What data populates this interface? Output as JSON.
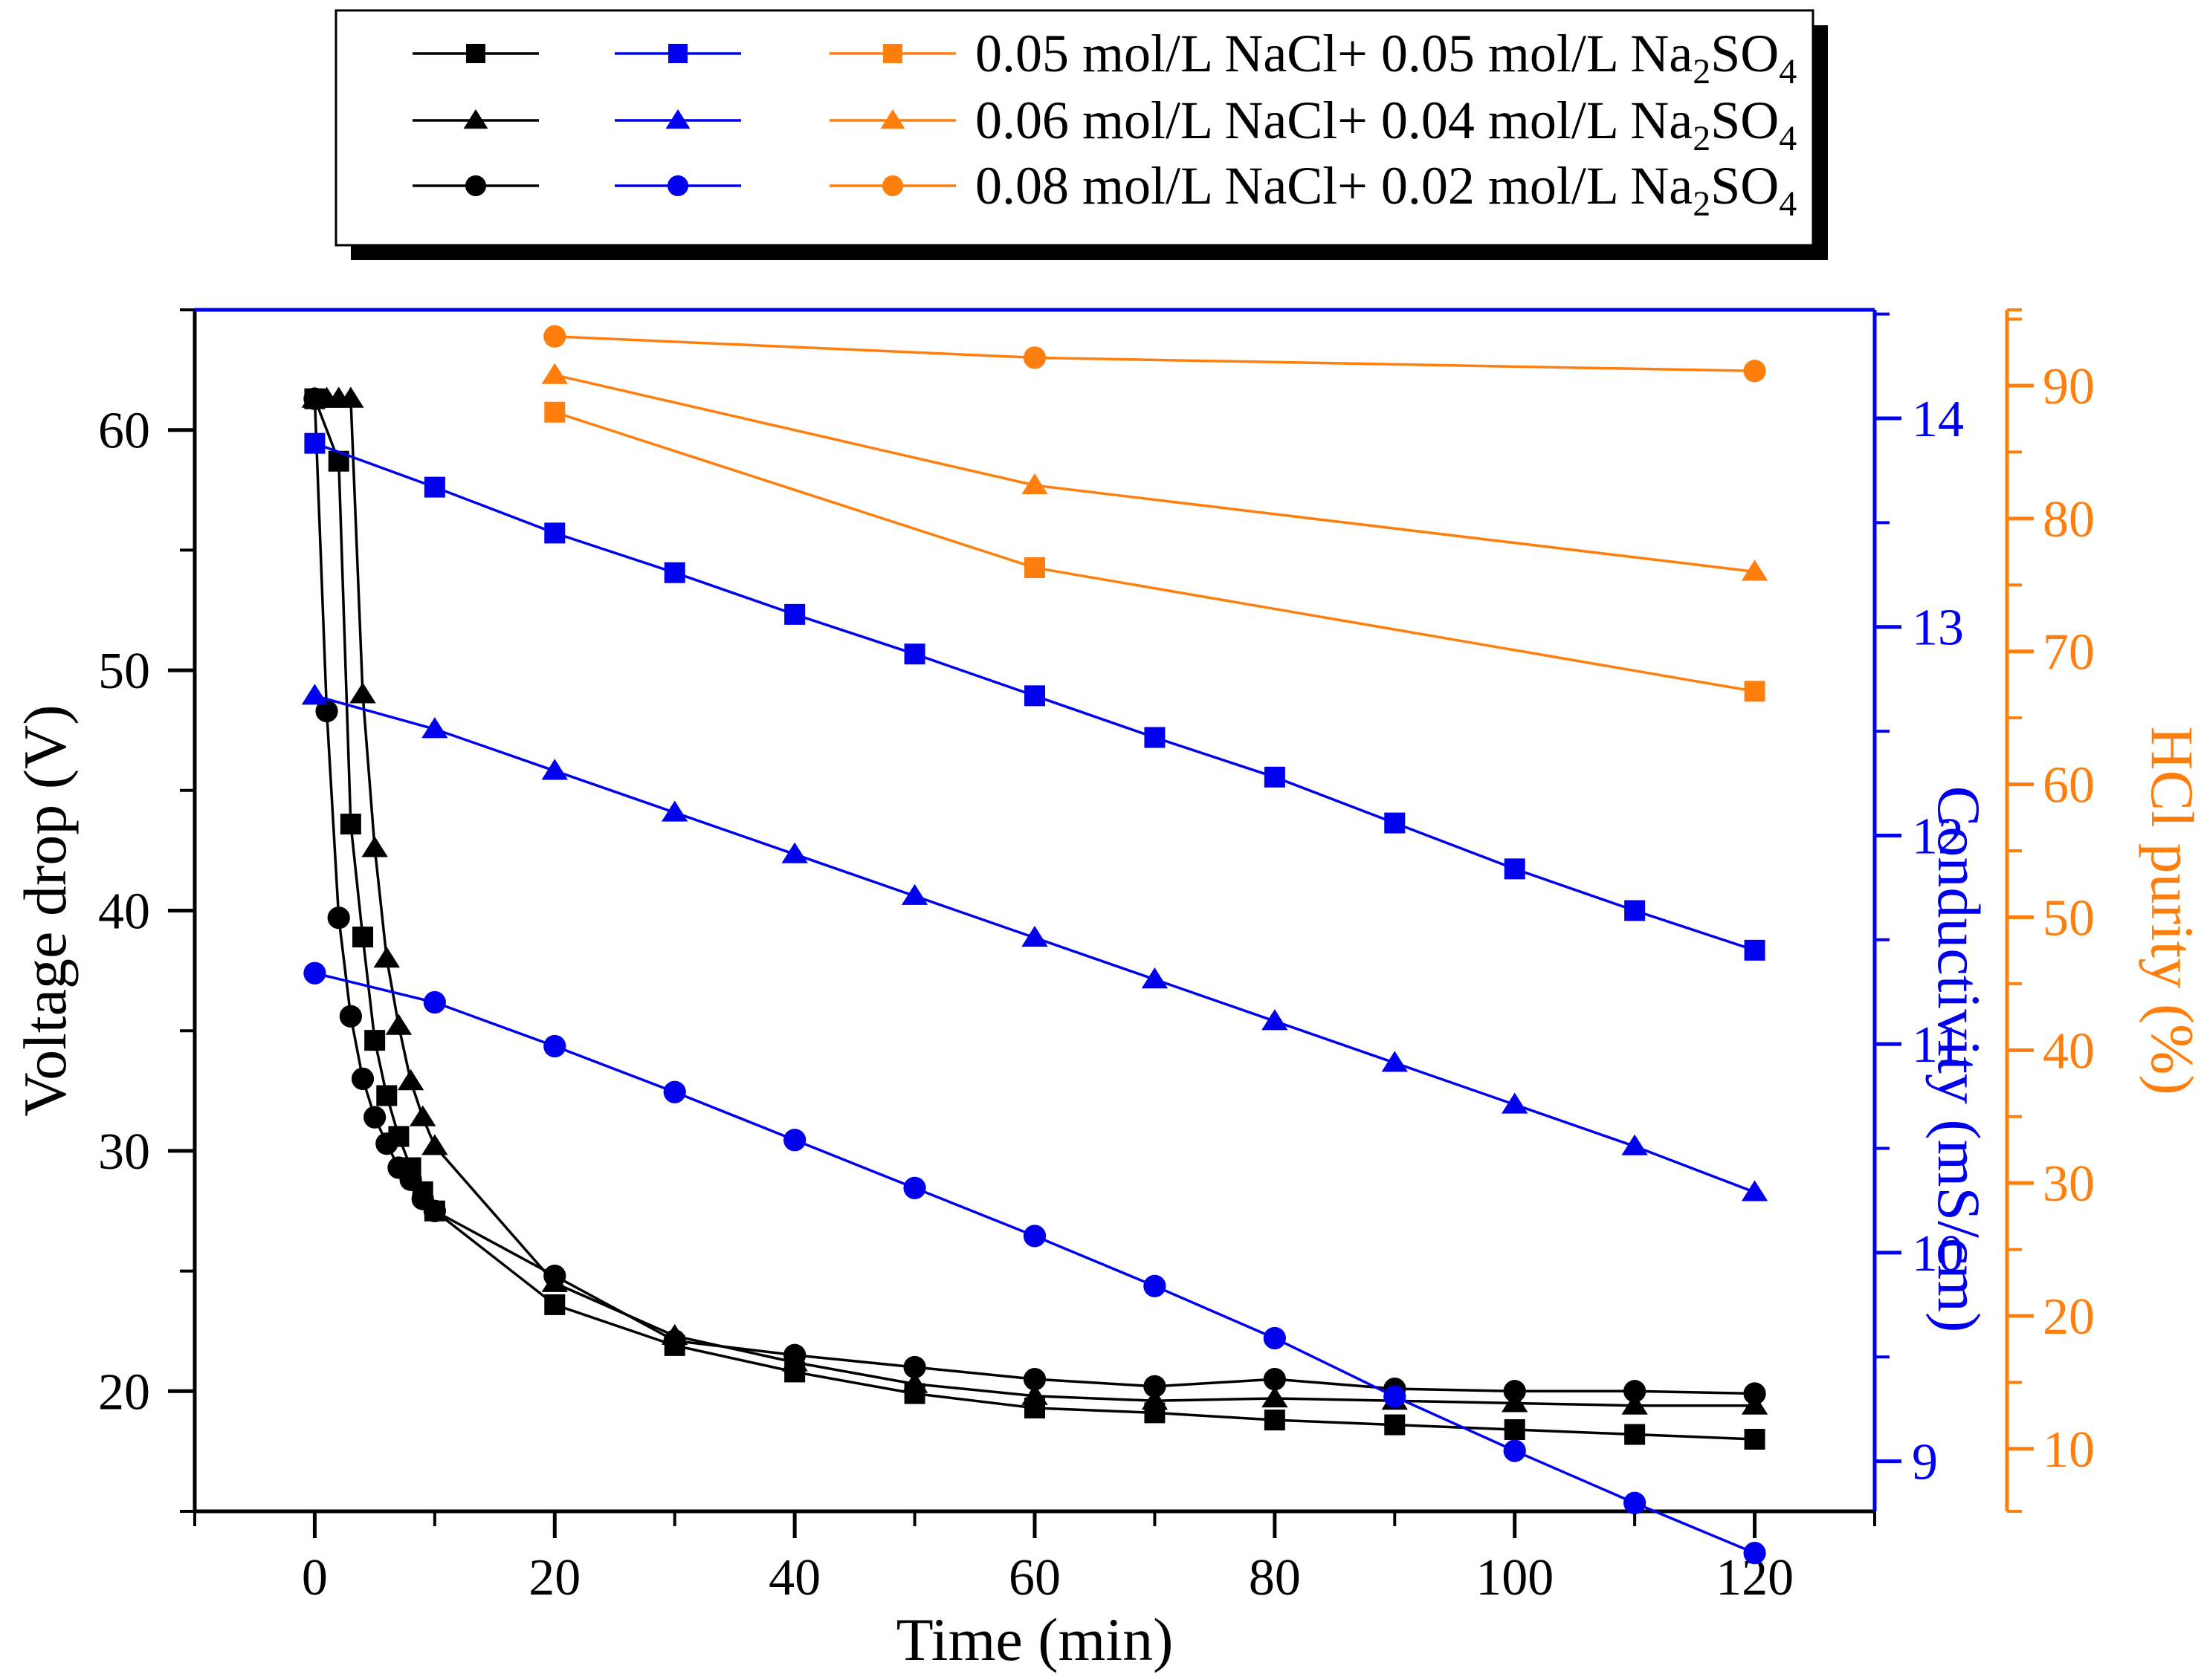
{
  "chart_data": {
    "type": "line",
    "x_axis": {
      "label": "Time (min)",
      "range": [
        -10,
        130
      ],
      "ticks": [
        0,
        20,
        40,
        60,
        80,
        100,
        120
      ],
      "tick_labels": [
        "0",
        "20",
        "40",
        "60",
        "80",
        "100",
        "120"
      ],
      "color": "#000000"
    },
    "y_axes": {
      "voltage": {
        "label": "Voltage drop (V)",
        "side": "left",
        "range": [
          15,
          65
        ],
        "ticks": [
          20,
          30,
          40,
          50,
          60
        ],
        "tick_labels": [
          "20",
          "30",
          "40",
          "50",
          "60"
        ],
        "color": "#000000"
      },
      "conductivity": {
        "label": "Conductivity (mS/cm)",
        "side": "right",
        "range": [
          8.76,
          14.52
        ],
        "ticks": [
          9,
          10,
          11,
          12,
          13,
          14
        ],
        "tick_labels": [
          "9",
          "10",
          "11",
          "12",
          "13",
          "14"
        ],
        "color": "#0000ee"
      },
      "purity": {
        "label": "HCl purity (%)",
        "side": "right-offset",
        "range": [
          5.3,
          95.7
        ],
        "ticks": [
          10,
          20,
          30,
          40,
          50,
          60,
          70,
          80,
          90
        ],
        "tick_labels": [
          "10",
          "20",
          "30",
          "40",
          "50",
          "60",
          "70",
          "80",
          "90"
        ],
        "color": "#ff7f0e"
      }
    },
    "series": [
      {
        "name": "Voltage drop - 0.05 mol/L NaCl+ 0.05 mol/L Na2SO4",
        "axis": "voltage",
        "marker": "square",
        "color": "#000000",
        "x": [
          0,
          2,
          3,
          4,
          5,
          6,
          7,
          8,
          9,
          10,
          20,
          30,
          40,
          50,
          60,
          70,
          80,
          90,
          100,
          110,
          120
        ],
        "y": [
          61.3,
          58.7,
          43.6,
          38.9,
          34.6,
          32.3,
          30.6,
          29.3,
          28.3,
          27.5,
          23.6,
          21.9,
          20.8,
          19.9,
          19.3,
          19.1,
          18.8,
          18.6,
          18.4,
          18.2,
          18.0
        ]
      },
      {
        "name": "Voltage drop - 0.06 mol/L NaCl+ 0.04 mol/L Na2SO4",
        "axis": "voltage",
        "marker": "triangle",
        "color": "#000000",
        "x": [
          0,
          1,
          2,
          3,
          4,
          5,
          6,
          7,
          8,
          9,
          10,
          20,
          30,
          40,
          50,
          60,
          70,
          80,
          90,
          100,
          110,
          120
        ],
        "y": [
          61.3,
          61.3,
          61.3,
          61.3,
          49.0,
          42.6,
          38.0,
          35.2,
          32.9,
          31.4,
          30.2,
          24.5,
          22.3,
          21.2,
          20.3,
          19.8,
          19.6,
          19.7,
          19.6,
          19.5,
          19.4,
          19.4
        ]
      },
      {
        "name": "Voltage drop - 0.08 mol/L NaCl+ 0.02 mol/L Na2SO4",
        "axis": "voltage",
        "marker": "circle",
        "color": "#000000",
        "x": [
          0,
          1,
          2,
          3,
          4,
          5,
          6,
          7,
          8,
          9,
          10,
          20,
          30,
          40,
          50,
          60,
          70,
          80,
          90,
          100,
          110,
          120
        ],
        "y": [
          61.3,
          48.3,
          39.7,
          35.6,
          33.0,
          31.4,
          30.3,
          29.3,
          28.8,
          28.0,
          27.5,
          24.8,
          22.1,
          21.5,
          21.0,
          20.5,
          20.2,
          20.5,
          20.1,
          20.0,
          20.0,
          19.9
        ]
      },
      {
        "name": "Conductivity - 0.05 mol/L NaCl+ 0.05 mol/L Na2SO4",
        "axis": "conductivity",
        "marker": "square",
        "color": "#0000ee",
        "x": [
          0,
          10,
          20,
          30,
          40,
          50,
          60,
          70,
          80,
          90,
          100,
          110,
          120
        ],
        "y": [
          13.88,
          13.67,
          13.45,
          13.26,
          13.06,
          12.87,
          12.67,
          12.47,
          12.28,
          12.06,
          11.84,
          11.64,
          11.45
        ]
      },
      {
        "name": "Conductivity - 0.06 mol/L NaCl+ 0.04 mol/L Na2SO4",
        "axis": "conductivity",
        "marker": "triangle",
        "color": "#0000ee",
        "x": [
          0,
          10,
          20,
          30,
          40,
          50,
          60,
          70,
          80,
          90,
          100,
          110,
          120
        ],
        "y": [
          12.67,
          12.51,
          12.31,
          12.11,
          11.91,
          11.71,
          11.51,
          11.31,
          11.11,
          10.91,
          10.71,
          10.51,
          10.29
        ]
      },
      {
        "name": "Conductivity - 0.08 mol/L NaCl+ 0.02 mol/L Na2SO4",
        "axis": "conductivity",
        "marker": "circle",
        "color": "#0000ee",
        "x": [
          0,
          10,
          20,
          30,
          40,
          50,
          60,
          70,
          80,
          90,
          100,
          110,
          120
        ],
        "y": [
          11.34,
          11.2,
          10.99,
          10.77,
          10.54,
          10.31,
          10.08,
          9.84,
          9.59,
          9.31,
          9.05,
          8.8,
          8.56
        ]
      },
      {
        "name": "HCl purity - 0.05 mol/L NaCl+ 0.05 mol/L Na2SO4",
        "axis": "purity",
        "marker": "square",
        "color": "#ff7f0e",
        "x": [
          20,
          60,
          120
        ],
        "y": [
          88.0,
          76.3,
          67.0
        ]
      },
      {
        "name": "HCl purity - 0.06 mol/L NaCl+ 0.04 mol/L Na2SO4",
        "axis": "purity",
        "marker": "triangle",
        "color": "#ff7f0e",
        "x": [
          20,
          60,
          120
        ],
        "y": [
          90.8,
          82.5,
          76.0
        ]
      },
      {
        "name": "HCl purity - 0.08 mol/L NaCl+ 0.02 mol/L Na2SO4",
        "axis": "purity",
        "marker": "circle",
        "color": "#ff7f0e",
        "x": [
          20,
          60,
          120
        ],
        "y": [
          93.7,
          92.1,
          91.1
        ]
      }
    ],
    "legend": {
      "placement": "top",
      "rows": [
        {
          "marker": "square",
          "label": "0.05 mol/L NaCl+ 0.05 mol/L Na",
          "sub": "2",
          "label_end": "SO",
          "sub2": "4"
        },
        {
          "marker": "triangle",
          "label": "0.06 mol/L NaCl+ 0.04 mol/L Na",
          "sub": "2",
          "label_end": "SO",
          "sub2": "4"
        },
        {
          "marker": "circle",
          "label": "0.08 mol/L NaCl+ 0.02 mol/L Na",
          "sub": "2",
          "label_end": "SO",
          "sub2": "4"
        }
      ],
      "colors": [
        "#000000",
        "#0000ee",
        "#ff7f0e"
      ]
    }
  }
}
